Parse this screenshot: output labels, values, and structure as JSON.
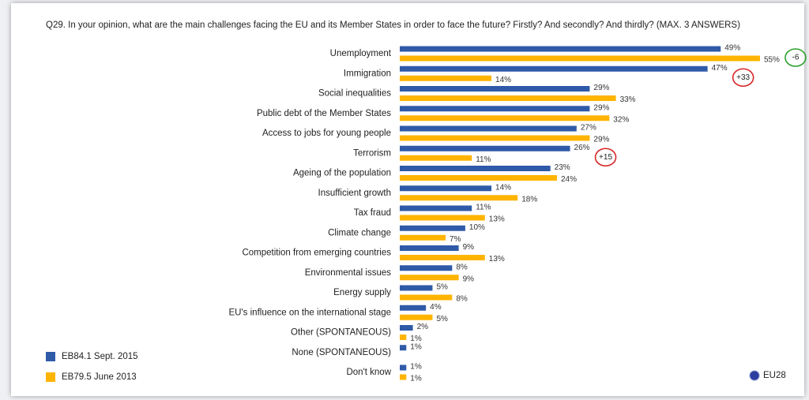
{
  "chart_data": {
    "type": "bar",
    "orientation": "horizontal",
    "title": "Q29. In your opinion, what are the main challenges facing the EU and its Member States in order to face the future? Firstly? And secondly? And thirdly? (MAX. 3 ANSWERS)",
    "categories": [
      "Unemployment",
      "Immigration",
      "Social inequalities",
      "Public debt of the Member States",
      "Access to jobs for young people",
      "Terrorism",
      "Ageing of the population",
      "Insufficient growth",
      "Tax fraud",
      "Climate change",
      "Competition from emerging countries",
      "Environmental issues",
      "Energy supply",
      "EU's influence on the international stage",
      "Other (SPONTANEOUS)",
      "None (SPONTANEOUS)",
      "Don't know"
    ],
    "series": [
      {
        "name": "EB84.1 Sept. 2015",
        "color": "#2f5aa8",
        "values": [
          49,
          47,
          29,
          29,
          27,
          26,
          23,
          14,
          11,
          10,
          9,
          8,
          5,
          4,
          2,
          1,
          1
        ],
        "value_labels": [
          "49%",
          "47%",
          "29%",
          "29%",
          "27%",
          "26%",
          "23%",
          "14%",
          "11%",
          "10%",
          "9%",
          "8%",
          "5%",
          "4%",
          "2%",
          "1%",
          "1%"
        ]
      },
      {
        "name": "EB79.5 June 2013",
        "color": "#ffb400",
        "values": [
          55,
          14,
          33,
          32,
          29,
          11,
          24,
          18,
          13,
          7,
          13,
          9,
          8,
          5,
          1,
          null,
          1
        ],
        "value_labels": [
          "55%",
          "14%",
          "33%",
          "32%",
          "29%",
          "11%",
          "24%",
          "18%",
          "13%",
          "7%",
          "13%",
          "9%",
          "8%",
          "5%",
          "1%",
          null,
          "1%"
        ]
      }
    ],
    "annotations": [
      {
        "category": "Unemployment",
        "text": "-6",
        "color": "#2ca02c"
      },
      {
        "category": "Immigration",
        "text": "+33",
        "color": "#d62728"
      },
      {
        "category": "Terrorism",
        "text": "+15",
        "color": "#d62728"
      }
    ],
    "region_label": "EU28",
    "legend": "bottom-left"
  }
}
